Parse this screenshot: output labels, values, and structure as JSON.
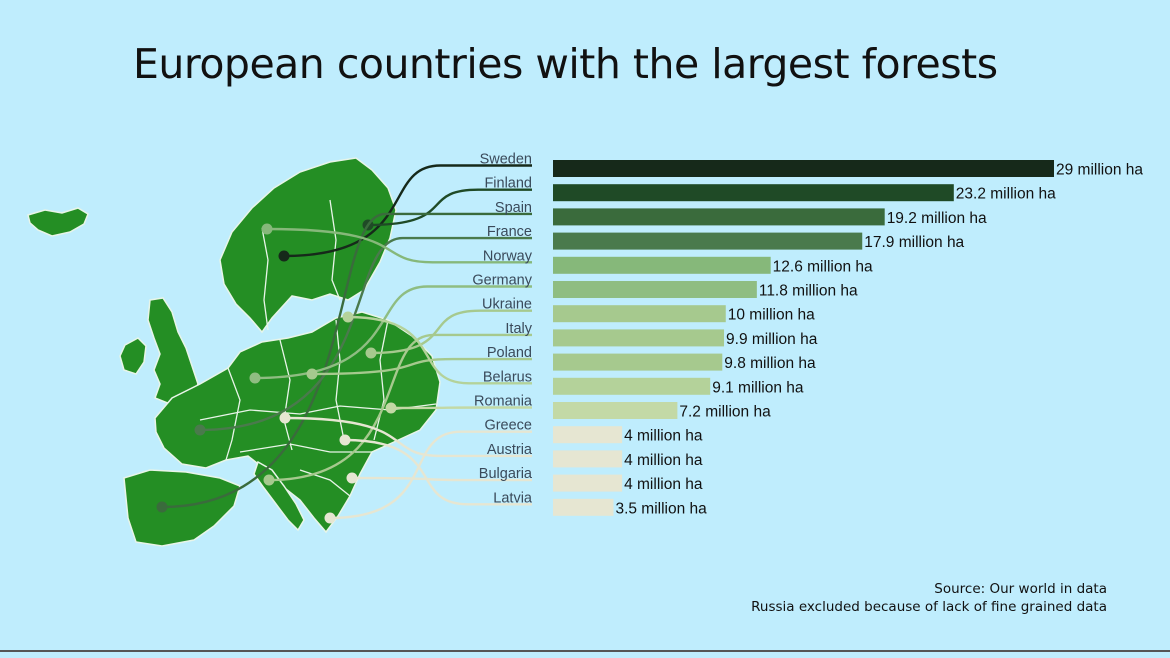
{
  "chart_data": {
    "type": "bar",
    "orientation": "horizontal",
    "title": "European countries with the largest forests",
    "categories": [
      "Sweden",
      "Finland",
      "Spain",
      "France",
      "Norway",
      "Germany",
      "Ukraine",
      "Italy",
      "Poland",
      "Belarus",
      "Romania",
      "Greece",
      "Austria",
      "Bulgaria",
      "Latvia"
    ],
    "values": [
      29,
      23.2,
      19.2,
      17.9,
      12.6,
      11.8,
      10,
      9.9,
      9.8,
      9.1,
      7.2,
      4,
      4,
      4,
      3.5
    ],
    "value_labels": [
      "29 million ha",
      "23.2 million ha",
      "19.2 million ha",
      "17.9 million ha",
      "12.6 million ha",
      "11.8 million ha",
      "10 million ha",
      "9.9 million ha",
      "9.8 million ha",
      "9.1 million ha",
      "7.2 million ha",
      "4 million ha",
      "4 million ha",
      "4 million ha",
      "3.5 million ha"
    ],
    "colors": [
      "#16291a",
      "#1f4a26",
      "#3a6b3c",
      "#4a7a4c",
      "#86b87a",
      "#8fbd82",
      "#a6c98e",
      "#a6c98e",
      "#a6c98e",
      "#b4d29a",
      "#c3d9a6",
      "#e6e6d2",
      "#e6e6d2",
      "#e6e6d2",
      "#e6e6d2"
    ],
    "grid": false,
    "legend": "none"
  },
  "source": {
    "line1": "Source: Our world in data",
    "line2": "Russia excluded because of lack of fine grained data"
  }
}
